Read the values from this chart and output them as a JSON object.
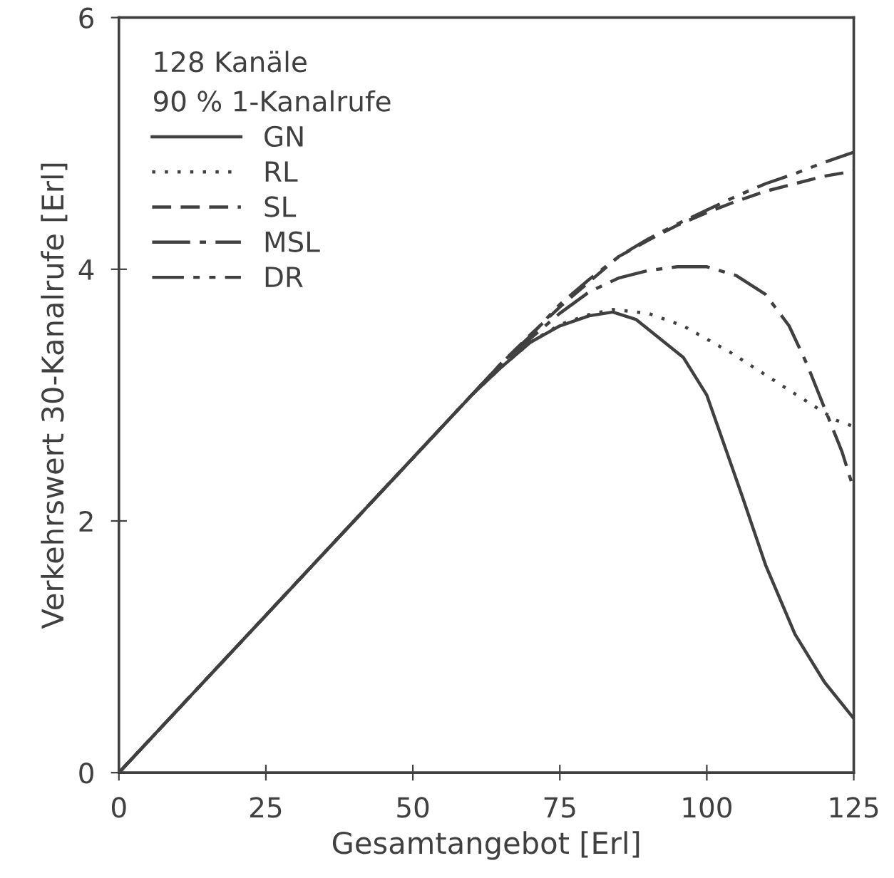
{
  "chart_data": {
    "type": "line",
    "xlabel": "Gesamtangebot [Erl]",
    "ylabel": "Verkehrswert 30-Kanalrufe [Erl]",
    "legend_title": "128 Kanäle\n90 % 1-Kanalrufe",
    "legend": "top left",
    "grid": false,
    "xlim": [
      0,
      125
    ],
    "ylim": [
      0,
      6
    ],
    "xticks": [
      0,
      25,
      50,
      75,
      100,
      125
    ],
    "yticks": [
      {
        "value": 0,
        "label": "0"
      },
      2,
      4,
      6
    ],
    "series": [
      {
        "name": "GN",
        "color": "#404040",
        "line_style": "solid",
        "x": [
          0,
          25,
          50,
          60,
          65,
          70,
          75,
          80,
          84,
          88,
          92,
          96,
          100,
          103,
          106,
          110,
          115,
          120,
          125
        ],
        "values": [
          0,
          1.25,
          2.5,
          3.0,
          3.22,
          3.42,
          3.55,
          3.63,
          3.66,
          3.6,
          3.45,
          3.3,
          3.0,
          2.6,
          2.2,
          1.65,
          1.1,
          0.72,
          0.43
        ]
      },
      {
        "name": "RL",
        "color": "#404040",
        "line_style": "dotted",
        "x": [
          0,
          25,
          50,
          60,
          65,
          70,
          75,
          80,
          84,
          90,
          96,
          104,
          112,
          117,
          122,
          125
        ],
        "values": [
          0,
          1.25,
          2.5,
          3.0,
          3.22,
          3.42,
          3.56,
          3.64,
          3.68,
          3.65,
          3.55,
          3.34,
          3.1,
          2.95,
          2.8,
          2.75
        ]
      },
      {
        "name": "SL",
        "color": "#404040",
        "line_style": "dashed",
        "x": [
          0,
          25,
          50,
          60,
          65,
          70,
          75,
          80,
          85,
          90,
          95,
          100,
          105,
          110,
          115,
          120,
          125
        ],
        "values": [
          0,
          1.25,
          2.5,
          3.0,
          3.25,
          3.48,
          3.7,
          3.9,
          4.1,
          4.23,
          4.35,
          4.45,
          4.54,
          4.62,
          4.68,
          4.74,
          4.78
        ]
      },
      {
        "name": "MSL",
        "color": "#404040",
        "line_style": "dashdot",
        "x": [
          0,
          25,
          50,
          60,
          65,
          70,
          75,
          80,
          85,
          90,
          95,
          100,
          105,
          110,
          114,
          117,
          120,
          123,
          125
        ],
        "values": [
          0,
          1.25,
          2.5,
          3.0,
          3.25,
          3.45,
          3.65,
          3.82,
          3.93,
          3.99,
          4.02,
          4.02,
          3.95,
          3.8,
          3.55,
          3.25,
          2.9,
          2.55,
          2.25
        ]
      },
      {
        "name": "DR",
        "color": "#404040",
        "line_style": "dashdotdot",
        "x": [
          0,
          25,
          50,
          60,
          65,
          70,
          75,
          80,
          85,
          90,
          95,
          100,
          105,
          110,
          115,
          120,
          125
        ],
        "values": [
          0,
          1.25,
          2.5,
          3.0,
          3.25,
          3.47,
          3.72,
          3.92,
          4.1,
          4.24,
          4.36,
          4.47,
          4.58,
          4.68,
          4.76,
          4.85,
          4.93
        ]
      }
    ]
  }
}
